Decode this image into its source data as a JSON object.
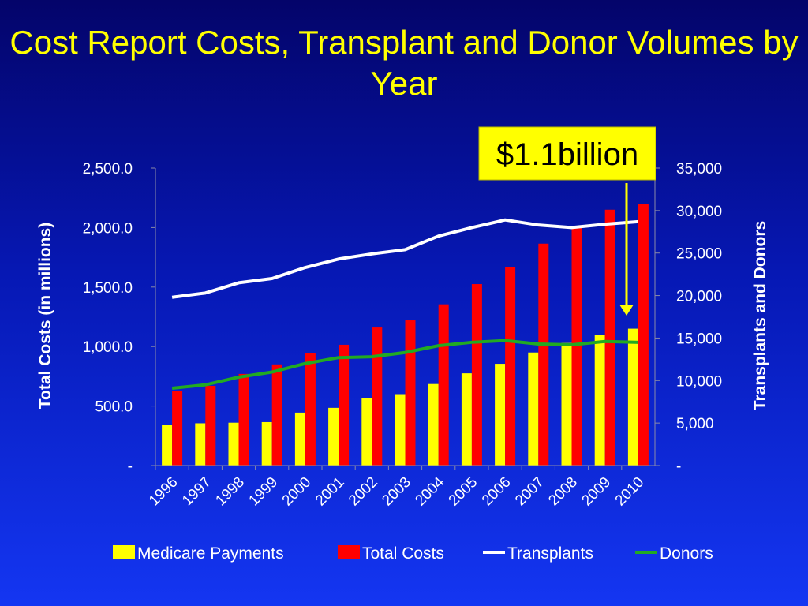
{
  "slide": {
    "title": "Cost Report Costs, Transplant and Donor Volumes by Year"
  },
  "chart_data": {
    "type": "bar",
    "categories": [
      "1996",
      "1997",
      "1998",
      "1999",
      "2000",
      "2001",
      "2002",
      "2003",
      "2004",
      "2005",
      "2006",
      "2007",
      "2008",
      "2009",
      "2010"
    ],
    "series": [
      {
        "name": "Medicare Payments",
        "kind": "bar",
        "axis": "left",
        "color": "#ffff00",
        "values": [
          340,
          355,
          360,
          365,
          445,
          485,
          565,
          600,
          685,
          775,
          855,
          950,
          1030,
          1095,
          1150
        ]
      },
      {
        "name": "Total Costs",
        "kind": "bar",
        "axis": "left",
        "color": "#ff0000",
        "values": [
          630,
          670,
          770,
          850,
          945,
          1015,
          1160,
          1220,
          1355,
          1525,
          1665,
          1865,
          2000,
          2150,
          2195
        ]
      },
      {
        "name": "Transplants",
        "kind": "line",
        "axis": "right",
        "color": "#ffffff",
        "values": [
          19800,
          20300,
          21500,
          22000,
          23300,
          24300,
          24900,
          25400,
          27000,
          28000,
          28900,
          28300,
          28000,
          28400,
          28700
        ]
      },
      {
        "name": "Donors",
        "kind": "line",
        "axis": "right",
        "color": "#22aa22",
        "values": [
          9100,
          9500,
          10400,
          11000,
          12000,
          12700,
          12800,
          13300,
          14100,
          14500,
          14700,
          14300,
          14200,
          14600,
          14500
        ]
      }
    ],
    "ylabel": "Total Costs (in millions)",
    "y2label": "Transplants and Donors",
    "ylim": [
      0,
      2500
    ],
    "y2lim": [
      0,
      35000
    ],
    "yticks": [
      "-",
      "500.0",
      "1,000.0",
      "1,500.0",
      "2,000.0",
      "2,500.0"
    ],
    "y2ticks": [
      "-",
      "5,000",
      "10,000",
      "15,000",
      "20,000",
      "25,000",
      "30,000",
      "35,000"
    ],
    "grid": false,
    "legend": "bottom",
    "annotation": {
      "text": "$1.1billion",
      "points_to": "2010"
    }
  }
}
